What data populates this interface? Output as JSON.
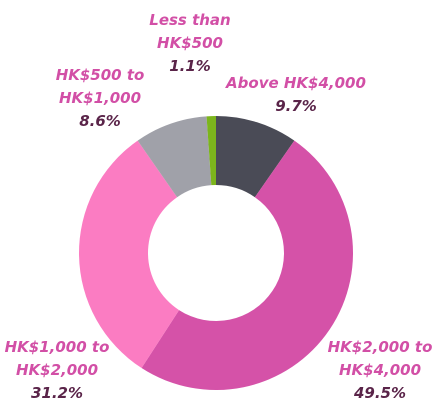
{
  "chart_data": {
    "type": "donut",
    "categories": [
      "Above HK$4,000",
      "HK$2,000 to HK$4,000",
      "HK$1,000 to HK$2,000",
      "HK$500 to HK$1,000",
      "Less than HK$500"
    ],
    "values": [
      9.7,
      49.5,
      31.2,
      8.6,
      1.1
    ],
    "value_labels": [
      "9.7%",
      "49.5%",
      "31.2%",
      "8.6%",
      "1.1%"
    ],
    "colors": [
      "#4a4b56",
      "#d552a8",
      "#fb7cc2",
      "#a0a1a9",
      "#7cb51c"
    ]
  }
}
